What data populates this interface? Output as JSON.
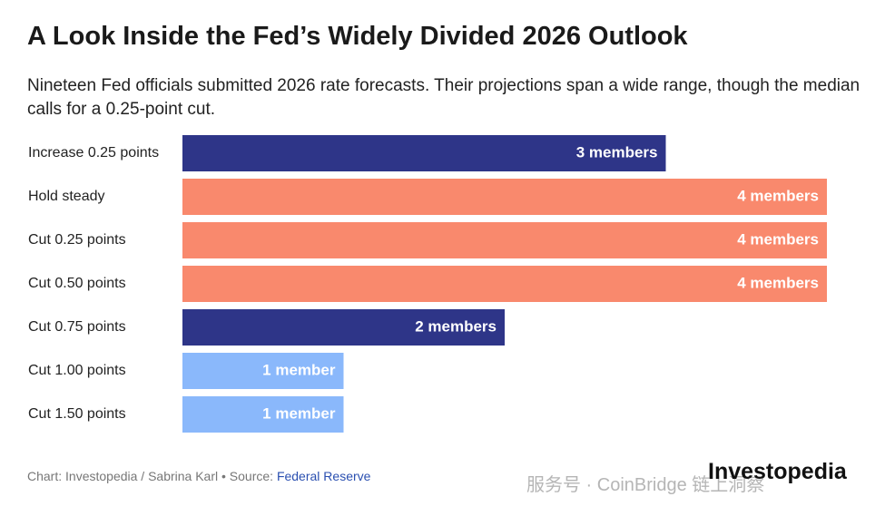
{
  "chart_data": {
    "type": "hbar",
    "title": "A Look Inside the Fed’s Widely Divided 2026 Outlook",
    "subtitle": "Nineteen Fed officials submitted 2026 rate forecasts. Their projections span a wide range, though the median calls for a 0.25-point cut.",
    "categories": [
      "Increase 0.25 points",
      "Hold steady",
      "Cut 0.25 points",
      "Cut 0.50 points",
      "Cut 0.75 points",
      "Cut 1.00 points",
      "Cut 1.50 points"
    ],
    "values": [
      3,
      4,
      4,
      4,
      2,
      1,
      1
    ],
    "value_labels": [
      "3 members",
      "4 members",
      "4 members",
      "4 members",
      "2 members",
      "1 member",
      "1 member"
    ],
    "colors": [
      "#2e3588",
      "#f9896d",
      "#f9896d",
      "#f9896d",
      "#2e3588",
      "#8ab8fb",
      "#8ab8fb"
    ],
    "xlim": [
      0,
      4
    ],
    "source": "Chart: Investopedia / Sabrina Karl • Source: ",
    "source_link": "Federal Reserve",
    "brand": "Investopedia",
    "watermark": "服务号 · CoinBridge 链上洞察"
  }
}
